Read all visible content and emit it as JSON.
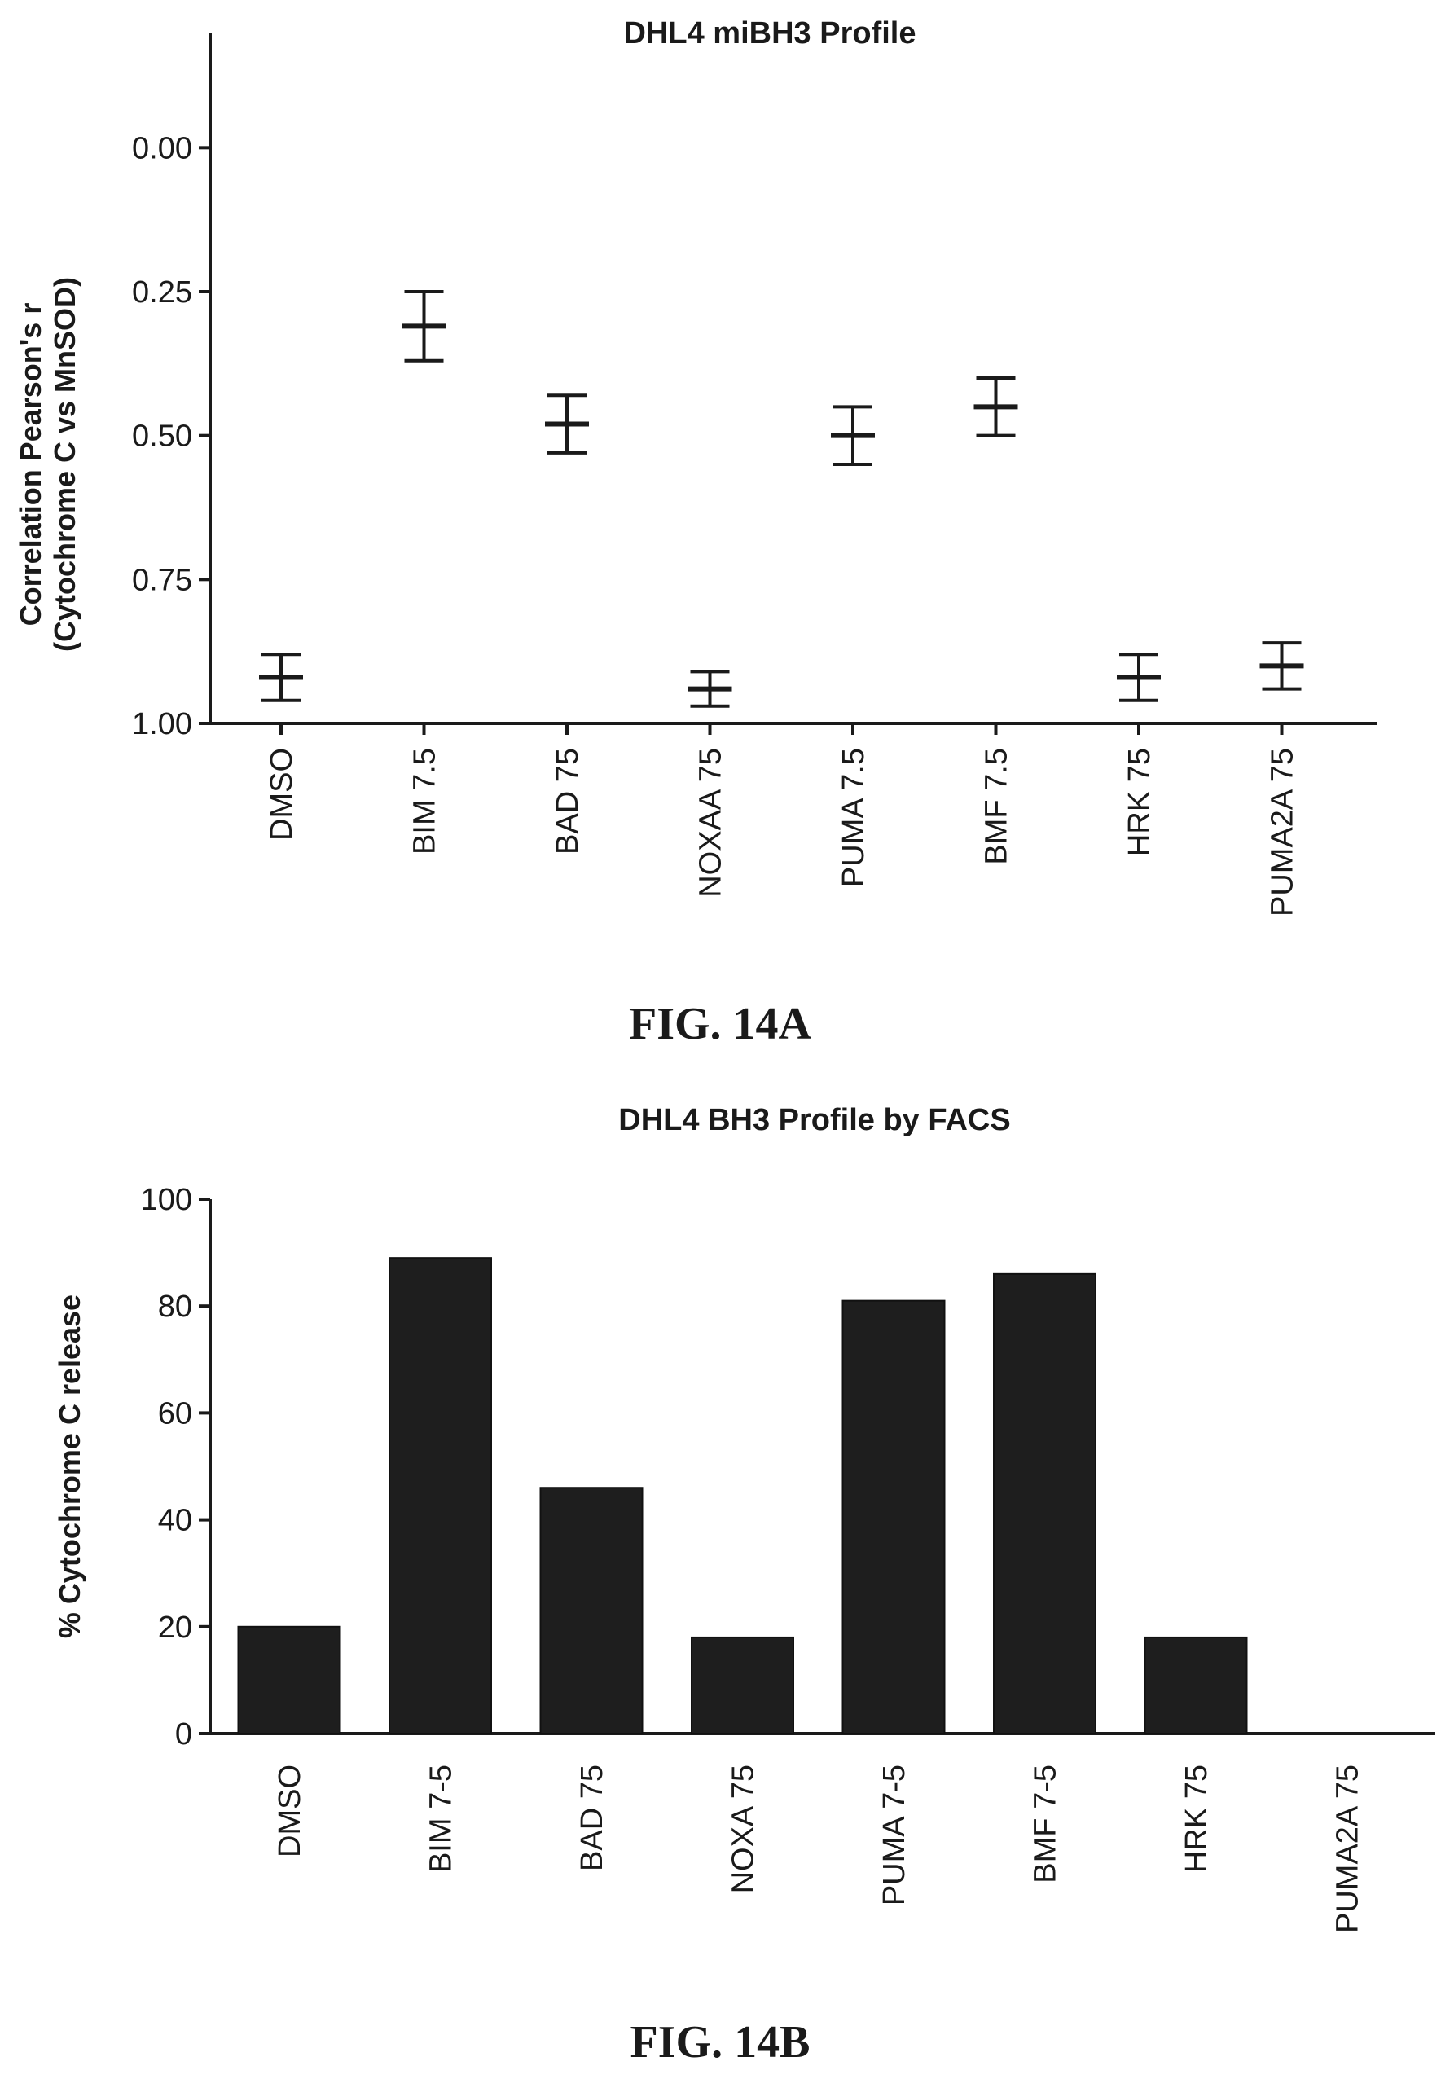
{
  "chart_data": [
    {
      "type": "scatter",
      "subtype": "mean-with-error-bars",
      "title": "DHL4 miBH3 Profile",
      "ylabel": [
        "Correlation Pearson's r",
        "(Cytochrome C vs MnSOD)"
      ],
      "y_axis_inverted": true,
      "ylim": [
        -0.2,
        1.0
      ],
      "yticks": [
        0.0,
        0.25,
        0.5,
        0.75,
        1.0
      ],
      "ytick_labels": [
        "0.00",
        "0.25",
        "0.50",
        "0.75",
        "1.00"
      ],
      "categories": [
        "DMSO",
        "BIM 7.5",
        "BAD 75",
        "NOXAA 75",
        "PUMA 7.5",
        "BMF 7.5",
        "HRK 75",
        "PUMA2A 75"
      ],
      "mean": [
        0.92,
        0.31,
        0.48,
        0.94,
        0.5,
        0.45,
        0.92,
        0.9
      ],
      "err_low": [
        0.88,
        0.25,
        0.43,
        0.91,
        0.45,
        0.4,
        0.88,
        0.86
      ],
      "err_high": [
        0.96,
        0.37,
        0.53,
        0.97,
        0.55,
        0.5,
        0.96,
        0.94
      ],
      "grid": false,
      "caption": "FIG. 14A"
    },
    {
      "type": "bar",
      "title": "DHL4 BH3 Profile by FACS",
      "ylabel": "% Cytochrome C release",
      "ylim": [
        0,
        100
      ],
      "yticks": [
        0,
        20,
        40,
        60,
        80,
        100
      ],
      "ytick_labels": [
        "0",
        "20",
        "40",
        "60",
        "80",
        "100"
      ],
      "categories": [
        "DMSO",
        "BIM 7-5",
        "BAD 75",
        "NOXA 75",
        "PUMA 7-5",
        "BMF 7-5",
        "HRK 75",
        "PUMA2A 75"
      ],
      "values": [
        20,
        89,
        46,
        18,
        81,
        86,
        18,
        0
      ],
      "grid": false,
      "caption": "FIG. 14B"
    }
  ]
}
